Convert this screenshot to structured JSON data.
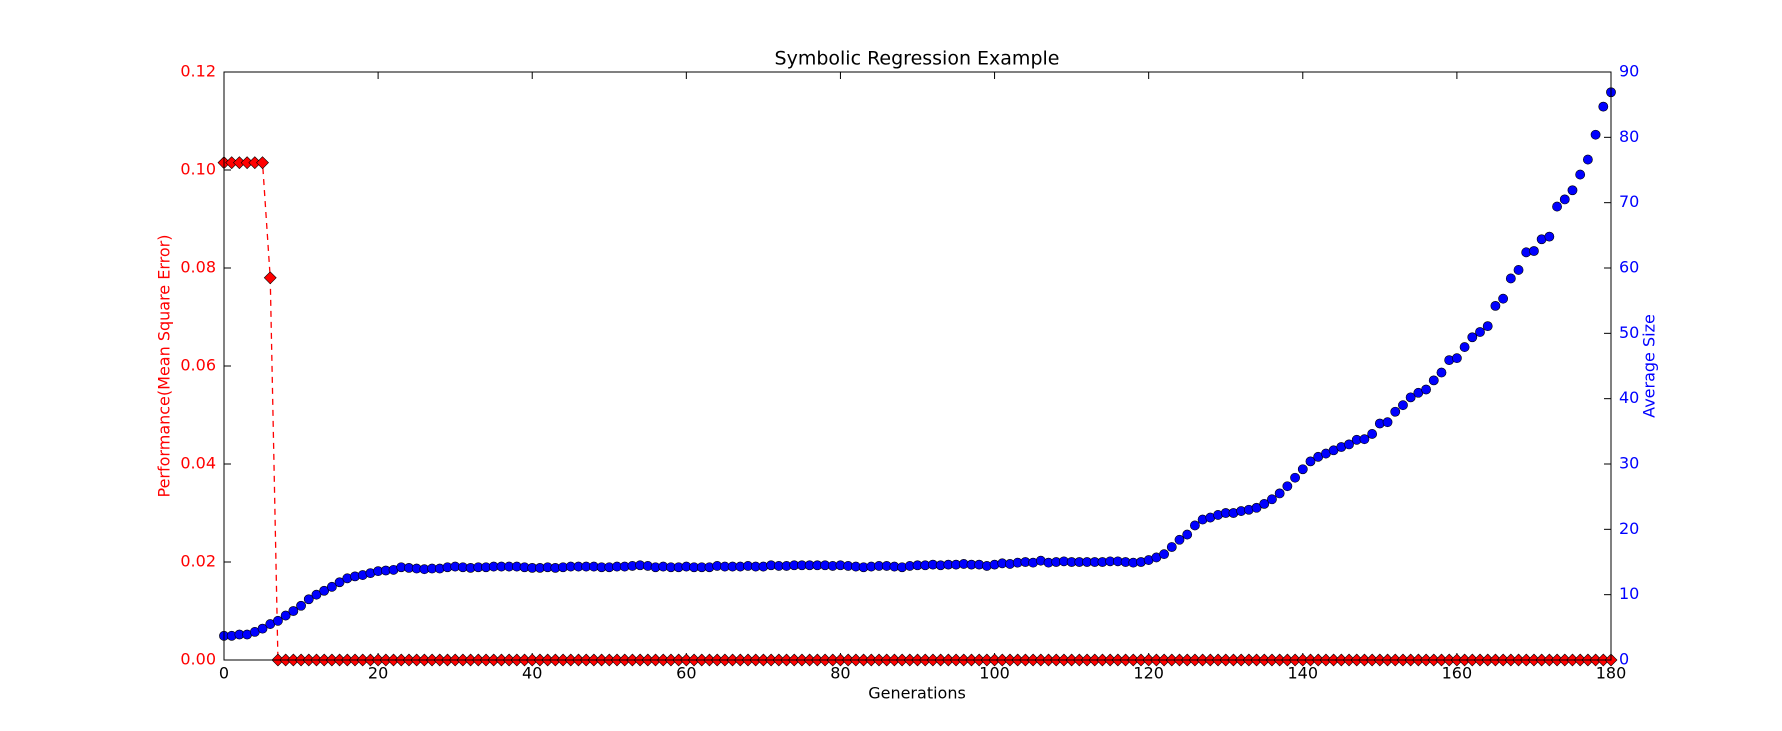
{
  "chart_data": {
    "type": "scatter",
    "title": "Symbolic Regression Example",
    "xlabel": "Generations",
    "ylabel": "Performance(Mean Square Error)",
    "y2label": "Average Size",
    "x": [
      0,
      1,
      2,
      3,
      4,
      5,
      6,
      7,
      8,
      9,
      10,
      11,
      12,
      13,
      14,
      15,
      16,
      17,
      18,
      19,
      20,
      21,
      22,
      23,
      24,
      25,
      26,
      27,
      28,
      29,
      30,
      31,
      32,
      33,
      34,
      35,
      36,
      37,
      38,
      39,
      40,
      41,
      42,
      43,
      44,
      45,
      46,
      47,
      48,
      49,
      50,
      51,
      52,
      53,
      54,
      55,
      56,
      57,
      58,
      59,
      60,
      61,
      62,
      63,
      64,
      65,
      66,
      67,
      68,
      69,
      70,
      71,
      72,
      73,
      74,
      75,
      76,
      77,
      78,
      79,
      80,
      81,
      82,
      83,
      84,
      85,
      86,
      87,
      88,
      89,
      90,
      91,
      92,
      93,
      94,
      95,
      96,
      97,
      98,
      99,
      100,
      101,
      102,
      103,
      104,
      105,
      106,
      107,
      108,
      109,
      110,
      111,
      112,
      113,
      114,
      115,
      116,
      117,
      118,
      119,
      120,
      121,
      122,
      123,
      124,
      125,
      126,
      127,
      128,
      129,
      130,
      131,
      132,
      133,
      134,
      135,
      136,
      137,
      138,
      139,
      140,
      141,
      142,
      143,
      144,
      145,
      146,
      147,
      148,
      149,
      150,
      151,
      152,
      153,
      154,
      155,
      156,
      157,
      158,
      159,
      160,
      161,
      162,
      163,
      164,
      165,
      166,
      167,
      168,
      169,
      170,
      171,
      172,
      173,
      174,
      175,
      176,
      177,
      178,
      179,
      180
    ],
    "series": [
      {
        "color": "#ff0000",
        "marker": "diamond",
        "line": "dashed",
        "values": [
          0.1015,
          0.1015,
          0.1015,
          0.1015,
          0.1015,
          0.1015,
          0.078,
          0,
          0,
          0,
          0,
          0,
          0,
          0,
          0,
          0,
          0,
          0,
          0,
          0,
          0,
          0,
          0,
          0,
          0,
          0,
          0,
          0,
          0,
          0,
          0,
          0,
          0,
          0,
          0,
          0,
          0,
          0,
          0,
          0,
          0,
          0,
          0,
          0,
          0,
          0,
          0,
          0,
          0,
          0,
          0,
          0,
          0,
          0,
          0,
          0,
          0,
          0,
          0,
          0,
          0,
          0,
          0,
          0,
          0,
          0,
          0,
          0,
          0,
          0,
          0,
          0,
          0,
          0,
          0,
          0,
          0,
          0,
          0,
          0,
          0,
          0,
          0,
          0,
          0,
          0,
          0,
          0,
          0,
          0,
          0,
          0,
          0,
          0,
          0,
          0,
          0,
          0,
          0,
          0,
          0,
          0,
          0,
          0,
          0,
          0,
          0,
          0,
          0,
          0,
          0,
          0,
          0,
          0,
          0,
          0,
          0,
          0,
          0,
          0,
          0,
          0,
          0,
          0,
          0,
          0,
          0,
          0,
          0,
          0,
          0,
          0,
          0,
          0,
          0,
          0,
          0,
          0,
          0,
          0,
          0,
          0,
          0,
          0,
          0,
          0,
          0,
          0,
          0,
          0,
          0,
          0,
          0,
          0,
          0,
          0,
          0,
          0,
          0,
          0,
          0,
          0,
          0,
          0,
          0,
          0,
          0,
          0,
          0,
          0,
          0,
          0,
          0,
          0,
          0,
          0,
          0,
          0,
          0,
          0,
          0
        ]
      },
      {
        "color": "#0000ff",
        "marker": "circle",
        "axis": "y2",
        "values": [
          3.7,
          3.7,
          3.9,
          3.9,
          4.3,
          4.8,
          5.5,
          6.0,
          6.8,
          7.5,
          8.3,
          9.3,
          10.0,
          10.6,
          11.2,
          11.9,
          12.5,
          12.8,
          13.0,
          13.3,
          13.6,
          13.7,
          13.8,
          14.2,
          14.1,
          14.0,
          13.9,
          14.0,
          14.0,
          14.2,
          14.3,
          14.2,
          14.1,
          14.2,
          14.2,
          14.3,
          14.3,
          14.3,
          14.3,
          14.2,
          14.1,
          14.1,
          14.2,
          14.1,
          14.2,
          14.3,
          14.3,
          14.3,
          14.3,
          14.2,
          14.2,
          14.3,
          14.3,
          14.4,
          14.5,
          14.4,
          14.2,
          14.3,
          14.2,
          14.2,
          14.3,
          14.2,
          14.2,
          14.2,
          14.4,
          14.3,
          14.3,
          14.3,
          14.4,
          14.3,
          14.3,
          14.5,
          14.4,
          14.4,
          14.5,
          14.5,
          14.5,
          14.5,
          14.5,
          14.4,
          14.5,
          14.4,
          14.3,
          14.2,
          14.3,
          14.4,
          14.4,
          14.3,
          14.2,
          14.4,
          14.5,
          14.5,
          14.6,
          14.5,
          14.6,
          14.6,
          14.7,
          14.6,
          14.6,
          14.4,
          14.6,
          14.8,
          14.7,
          14.9,
          15.0,
          14.9,
          15.2,
          14.9,
          15.0,
          15.1,
          15.0,
          15.0,
          15.0,
          15.0,
          15.0,
          15.1,
          15.1,
          15.0,
          14.9,
          15.0,
          15.3,
          15.7,
          16.2,
          17.3,
          18.4,
          19.2,
          20.6,
          21.5,
          21.8,
          22.2,
          22.5,
          22.5,
          22.8,
          23.0,
          23.3,
          23.9,
          24.6,
          25.5,
          26.6,
          27.9,
          29.2,
          30.4,
          31.1,
          31.6,
          32.1,
          32.6,
          33.0,
          33.7,
          33.8,
          34.6,
          36.2,
          36.4,
          38.0,
          39.0,
          40.2,
          40.9,
          41.4,
          42.8,
          44.0,
          45.9,
          46.2,
          47.9,
          49.4,
          50.2,
          51.1,
          54.2,
          55.3,
          58.4,
          59.7,
          62.4,
          62.6,
          64.4,
          64.8,
          69.4,
          70.5,
          71.9,
          74.3,
          76.6,
          80.4,
          84.7,
          86.9
        ]
      }
    ],
    "xlim": [
      0,
      180
    ],
    "xticks": [
      0,
      20,
      40,
      60,
      80,
      100,
      120,
      140,
      160,
      180
    ],
    "ylim": [
      0,
      0.12
    ],
    "yticks": [
      {
        "value": 0,
        "label": "0.00"
      },
      {
        "value": 0.02,
        "label": "0.02"
      },
      {
        "value": 0.04,
        "label": "0.04"
      },
      {
        "value": 0.06,
        "label": "0.06"
      },
      {
        "value": 0.08,
        "label": "0.08"
      },
      {
        "value": 0.1,
        "label": "0.10"
      },
      {
        "value": 0.12,
        "label": "0.12"
      }
    ],
    "y2lim": [
      0,
      90
    ],
    "y2ticks": [
      0,
      10,
      20,
      30,
      40,
      50,
      60,
      70,
      80,
      90
    ]
  }
}
